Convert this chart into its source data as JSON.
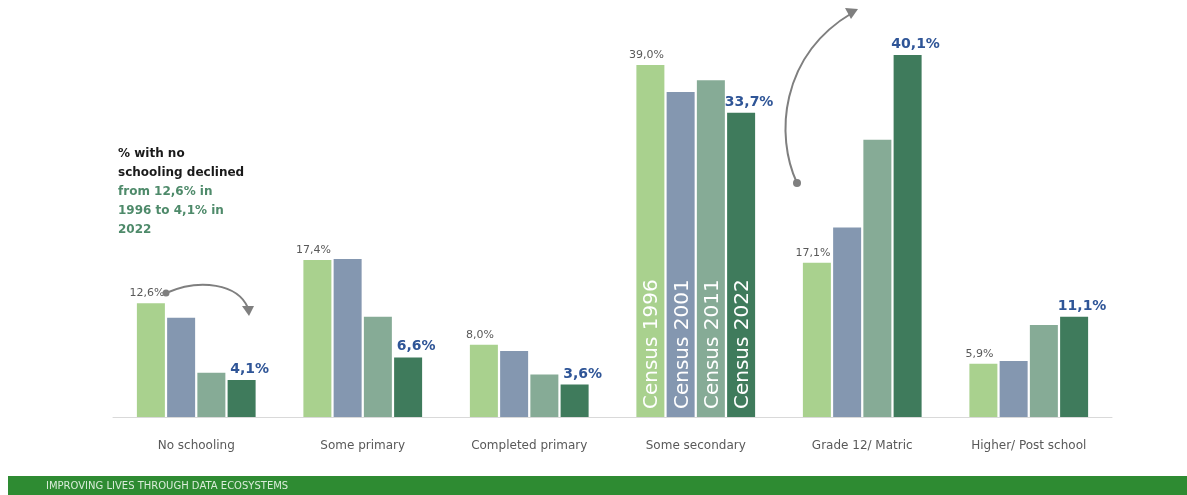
{
  "chart_data": {
    "type": "bar",
    "categories": [
      "No schooling",
      "Some primary",
      "Completed primary",
      "Some secondary",
      "Grade 12/ Matric",
      "Higher/ Post school"
    ],
    "series": [
      {
        "name": "Census 1996",
        "color": "#a9d18e",
        "values": [
          12.6,
          17.4,
          8.0,
          39.0,
          17.1,
          5.9
        ],
        "value_labels": [
          "12,6%",
          "17,4%",
          "8,0%",
          "39,0%",
          "17,1%",
          "5,9%"
        ]
      },
      {
        "name": "Census 2001",
        "color": "#8497b0",
        "values": [
          11.0,
          17.5,
          7.3,
          36.0,
          21.0,
          6.2
        ]
      },
      {
        "name": "Census 2011",
        "color": "#86ab96",
        "values": [
          4.9,
          11.1,
          4.7,
          37.3,
          30.7,
          10.2
        ]
      },
      {
        "name": "Census 2022",
        "color": "#3f7b5c",
        "values": [
          4.1,
          6.6,
          3.6,
          33.7,
          40.1,
          11.1
        ],
        "value_labels": [
          "4,1%",
          "6,6%",
          "3,6%",
          "33,7%",
          "40,1%",
          "11,1%"
        ]
      }
    ],
    "legend": false,
    "annotations": [
      "% with no schooling declined",
      "from 12,6% in 1996 to 4,1% in 2022",
      "IMPROVING LIVES THROUGH DATA ECOSYSTEMS"
    ]
  }
}
